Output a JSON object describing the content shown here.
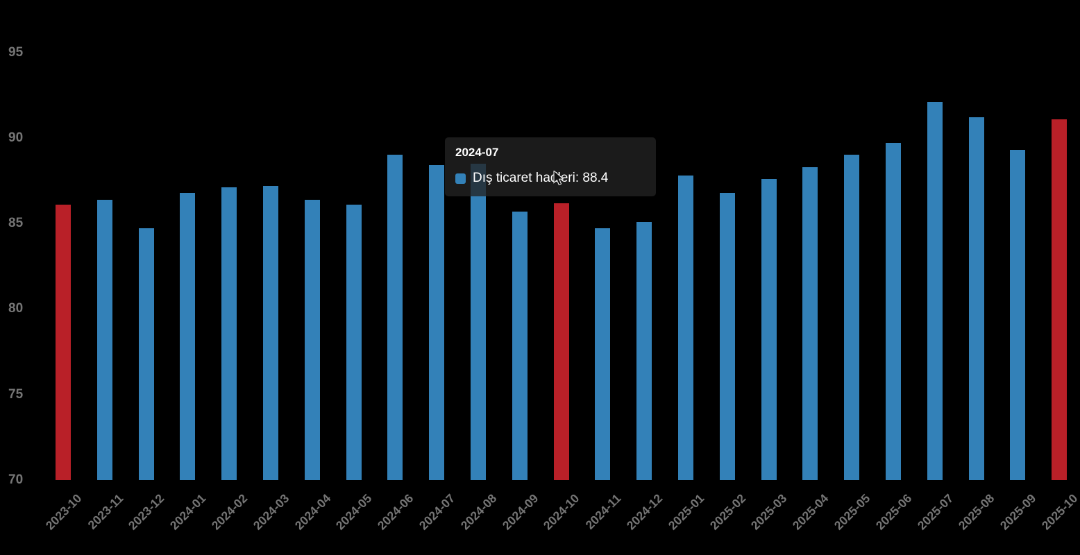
{
  "chart_data": {
    "type": "bar",
    "title": "",
    "xlabel": "",
    "ylabel": "",
    "categories": [
      "2023-10",
      "2023-11",
      "2023-12",
      "2024-01",
      "2024-02",
      "2024-03",
      "2024-04",
      "2024-05",
      "2024-06",
      "2024-07",
      "2024-08",
      "2024-09",
      "2024-10",
      "2024-11",
      "2024-12",
      "2025-01",
      "2025-02",
      "2025-03",
      "2025-04",
      "2025-05",
      "2025-06",
      "2025-07",
      "2025-08",
      "2025-09",
      "2025-10"
    ],
    "series": [
      {
        "name": "Dış ticaret hadleri",
        "values": [
          86.1,
          86.4,
          84.7,
          86.8,
          87.1,
          87.2,
          86.4,
          86.1,
          89.0,
          88.4,
          88.5,
          85.7,
          86.2,
          84.7,
          85.1,
          87.8,
          86.8,
          87.6,
          88.3,
          89.0,
          89.7,
          92.1,
          91.2,
          89.3,
          91.1
        ]
      }
    ],
    "highlight_categories": [
      "2023-10",
      "2024-10",
      "2025-10"
    ],
    "hovered_category": "2024-07",
    "ylim": [
      70,
      95
    ],
    "yticks": [
      70,
      75,
      80,
      85,
      90,
      95
    ],
    "grid": false,
    "legend_position": "none",
    "colors": {
      "background": "#000000",
      "bar": "#3381b8",
      "bar_highlight": "#b92028",
      "axis_label": "#757575"
    }
  },
  "tooltip": {
    "title": "2024-07",
    "series": "Dış ticaret hadleri",
    "value": "88.4",
    "text": "Dış ticaret hadleri: 88.4",
    "marker_color": "#3381b8"
  }
}
